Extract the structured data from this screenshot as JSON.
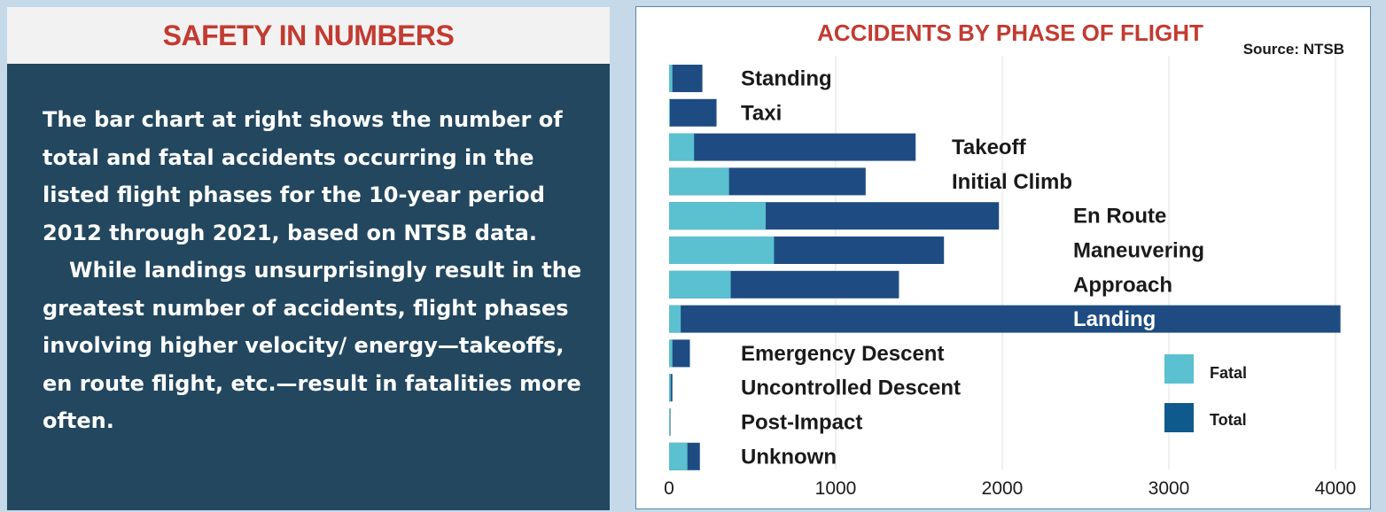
{
  "left_panel": {
    "title": "SAFETY IN NUMBERS",
    "paragraph1": "The bar chart at right shows the number of total and fatal accidents occurring in the listed flight phases for the 10-year period 2012 through 2021, based on NTSB data.",
    "paragraph2": "While landings unsurprisingly result in the greatest number of accidents, flight phases involving higher velocity/ energy—takeoffs, en route flight, etc.—result in fatalities more often."
  },
  "chart_data": {
    "type": "bar",
    "orientation": "horizontal",
    "title": "ACCIDENTS BY PHASE OF FLIGHT",
    "source": "Source: NTSB",
    "categories": [
      "Standing",
      "Taxi",
      "Takeoff",
      "Initial Climb",
      "En Route",
      "Maneuvering",
      "Approach",
      "Landing",
      "Emergency Descent",
      "Uncontrolled Descent",
      "Post-Impact",
      "Unknown"
    ],
    "series": [
      {
        "name": "Fatal",
        "color": "#5bc0cf",
        "values": [
          20,
          5,
          150,
          360,
          580,
          630,
          370,
          70,
          20,
          10,
          5,
          110
        ]
      },
      {
        "name": "Total",
        "color": "#1e4c82",
        "values": [
          200,
          285,
          1480,
          1180,
          1980,
          1650,
          1380,
          4030,
          125,
          20,
          8,
          185
        ]
      }
    ],
    "xlim": [
      0,
      4000
    ],
    "xticks": [
      0,
      1000,
      2000,
      3000,
      4000
    ],
    "grid": true,
    "legend_position": "right",
    "label_offsets": [
      0,
      0,
      1,
      1,
      2,
      2,
      2,
      2,
      0,
      0,
      0,
      0
    ]
  }
}
